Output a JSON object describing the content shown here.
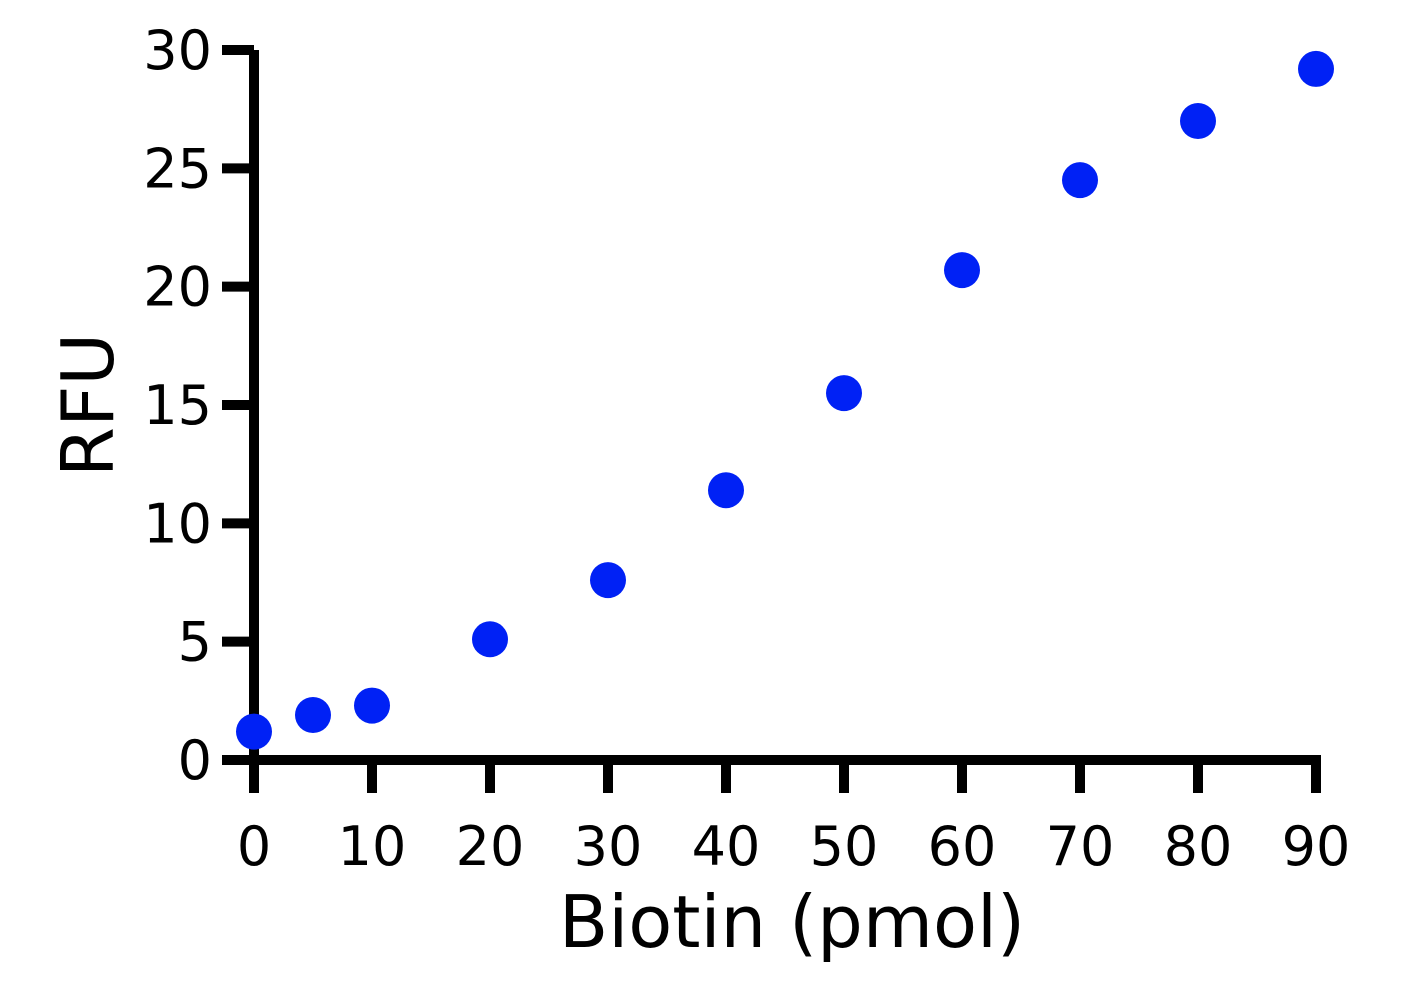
{
  "chart_data": {
    "type": "scatter",
    "title": "",
    "xlabel": "Biotin (pmol)",
    "ylabel": "RFU",
    "xlim": [
      0,
      90
    ],
    "ylim": [
      0,
      30
    ],
    "xticks": [
      0,
      10,
      20,
      30,
      40,
      50,
      60,
      70,
      80,
      90
    ],
    "yticks": [
      0,
      5,
      10,
      15,
      20,
      25,
      30
    ],
    "grid": false,
    "series": [
      {
        "color": "#0021f5",
        "points": [
          {
            "x": 0,
            "y": 1.2
          },
          {
            "x": 5,
            "y": 1.9
          },
          {
            "x": 10,
            "y": 2.3
          },
          {
            "x": 20,
            "y": 5.1
          },
          {
            "x": 30,
            "y": 7.6
          },
          {
            "x": 40,
            "y": 11.4
          },
          {
            "x": 50,
            "y": 15.5
          },
          {
            "x": 60,
            "y": 20.7
          },
          {
            "x": 70,
            "y": 24.5
          },
          {
            "x": 80,
            "y": 27.0
          },
          {
            "x": 90,
            "y": 29.2
          }
        ]
      }
    ]
  }
}
